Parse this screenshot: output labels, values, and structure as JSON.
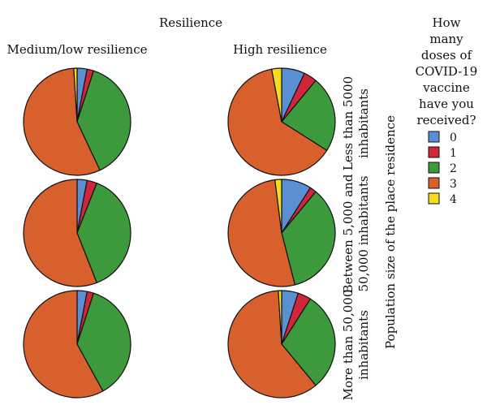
{
  "chart_data": {
    "type": "pie",
    "title": "Resilience",
    "column_labels": [
      "Medium/low resilience",
      "High resilience"
    ],
    "row_axis_label": "Population size of the place residence",
    "row_labels": [
      [
        "Less than 5000",
        "inhabitants"
      ],
      [
        "Between 5,000 and",
        "50,000 inhabitants"
      ],
      [
        "More than 50,000",
        "inhabitants"
      ]
    ],
    "legend": {
      "title_lines": [
        "How",
        "many",
        "doses of",
        "COVID-19",
        "vaccine",
        "have you",
        "received?"
      ],
      "placement": "right",
      "items": [
        {
          "label": "0",
          "color": "#5b8fd4"
        },
        {
          "label": "1",
          "color": "#d0263a"
        },
        {
          "label": "2",
          "color": "#3c9a3c"
        },
        {
          "label": "3",
          "color": "#d8602c"
        },
        {
          "label": "4",
          "color": "#f2dd1f"
        }
      ]
    },
    "categories": [
      "0",
      "1",
      "2",
      "3",
      "4"
    ],
    "pies": [
      {
        "row": 0,
        "col": 0,
        "values": [
          3,
          2,
          38,
          56,
          1
        ]
      },
      {
        "row": 0,
        "col": 1,
        "values": [
          7,
          4,
          23,
          63,
          3
        ]
      },
      {
        "row": 1,
        "col": 0,
        "values": [
          3,
          3,
          38,
          56,
          0
        ]
      },
      {
        "row": 1,
        "col": 1,
        "values": [
          9,
          2,
          35,
          52,
          2
        ]
      },
      {
        "row": 2,
        "col": 0,
        "values": [
          3,
          2,
          37,
          58,
          0
        ]
      },
      {
        "row": 2,
        "col": 1,
        "values": [
          5,
          4,
          30,
          60,
          1
        ]
      }
    ]
  }
}
